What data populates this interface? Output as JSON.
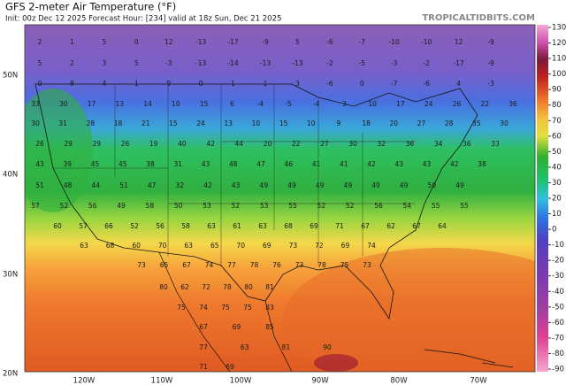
{
  "header": {
    "title": "GFS 2-meter Air Temperature (°F)",
    "subtitle": "Init: 00z Dec 12 2025   Forecast Hour: [234]   valid at 18z Sun, Dec 21 2025",
    "source": "TROPICALTIDBITS.COM"
  },
  "lat_labels": [
    "50N",
    "40N",
    "30N",
    "20N"
  ],
  "lon_labels": [
    "120W",
    "110W",
    "100W",
    "90W",
    "80W",
    "70W"
  ],
  "colorbar": {
    "ticks": [
      130,
      120,
      110,
      100,
      90,
      80,
      70,
      60,
      50,
      40,
      30,
      20,
      10,
      0,
      -10,
      -20,
      -30,
      -40,
      -50,
      -60,
      -70,
      -80,
      -90
    ]
  },
  "temperatures": [
    [
      2,
      1,
      5,
      0,
      12,
      -13,
      -17,
      -9,
      5,
      -6,
      -7,
      -10,
      -10,
      12,
      -9
    ],
    [
      5,
      2,
      3,
      5,
      -3,
      -13,
      -14,
      -13,
      -13,
      -2,
      -5,
      -3,
      -2,
      -17,
      -9
    ],
    [
      0,
      8,
      4,
      1,
      9,
      0,
      1,
      1,
      3,
      -6,
      0,
      -7,
      -6,
      4,
      -3
    ],
    [
      33,
      30,
      17,
      13,
      14,
      10,
      15,
      6,
      -4,
      -5,
      -4,
      3,
      10,
      17,
      24,
      26,
      22,
      36
    ],
    [
      30,
      31,
      28,
      18,
      21,
      15,
      24,
      13,
      10,
      15,
      10,
      9,
      18,
      20,
      27,
      28,
      35,
      30
    ],
    [
      26,
      29,
      29,
      26,
      19,
      40,
      42,
      44,
      20,
      22,
      27,
      30,
      32,
      36,
      34,
      36,
      33
    ],
    [
      43,
      39,
      45,
      45,
      38,
      31,
      43,
      48,
      47,
      46,
      41,
      41,
      42,
      43,
      43,
      42,
      38
    ],
    [
      51,
      48,
      44,
      51,
      47,
      32,
      42,
      43,
      49,
      49,
      49,
      49,
      49,
      49,
      50,
      49
    ],
    [
      57,
      52,
      56,
      49,
      58,
      50,
      53,
      52,
      53,
      55,
      52,
      52,
      56,
      54,
      55,
      55
    ],
    [
      60,
      57,
      66,
      52,
      56,
      58,
      63,
      61,
      63,
      68,
      69,
      71,
      67,
      62,
      67,
      64
    ],
    [
      63,
      68,
      60,
      70,
      63,
      65,
      70,
      69,
      73,
      72,
      69,
      74
    ],
    [
      73,
      65,
      67,
      74,
      77,
      78,
      76,
      73,
      78,
      75,
      73
    ],
    [
      80,
      62,
      72,
      78,
      80,
      81
    ],
    [
      75,
      74,
      75,
      75,
      83
    ],
    [
      67,
      69,
      85
    ],
    [
      77,
      63,
      81,
      90
    ],
    [
      71,
      69
    ]
  ]
}
